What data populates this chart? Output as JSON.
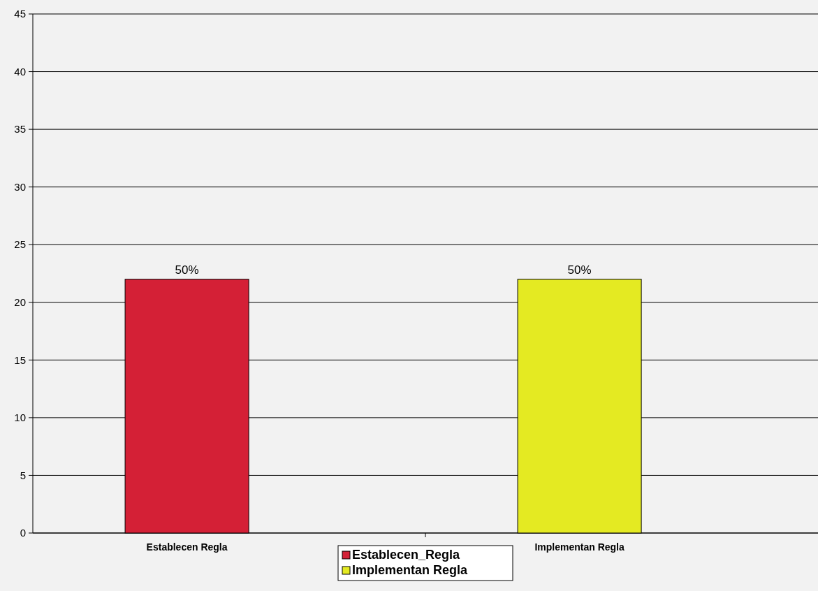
{
  "chart_data": {
    "type": "bar",
    "categories": [
      "Establecen Regla",
      "Implementan Regla"
    ],
    "series": [
      {
        "name": "Establecen_Regla",
        "color": "#d42036",
        "values": [
          22,
          null
        ]
      },
      {
        "name": "Implementan Regla",
        "color": "#e4ea22",
        "values": [
          null,
          22
        ]
      }
    ],
    "annotations": [
      {
        "text": "50%",
        "x": "Establecen Regla",
        "y": 22
      },
      {
        "text": "50%",
        "x": "Implementan Regla",
        "y": 22
      }
    ],
    "ylim": [
      0,
      45
    ],
    "yticks": [
      0,
      5,
      10,
      15,
      20,
      25,
      30,
      35,
      40,
      45
    ],
    "grid": "y",
    "legend": "bottom"
  }
}
